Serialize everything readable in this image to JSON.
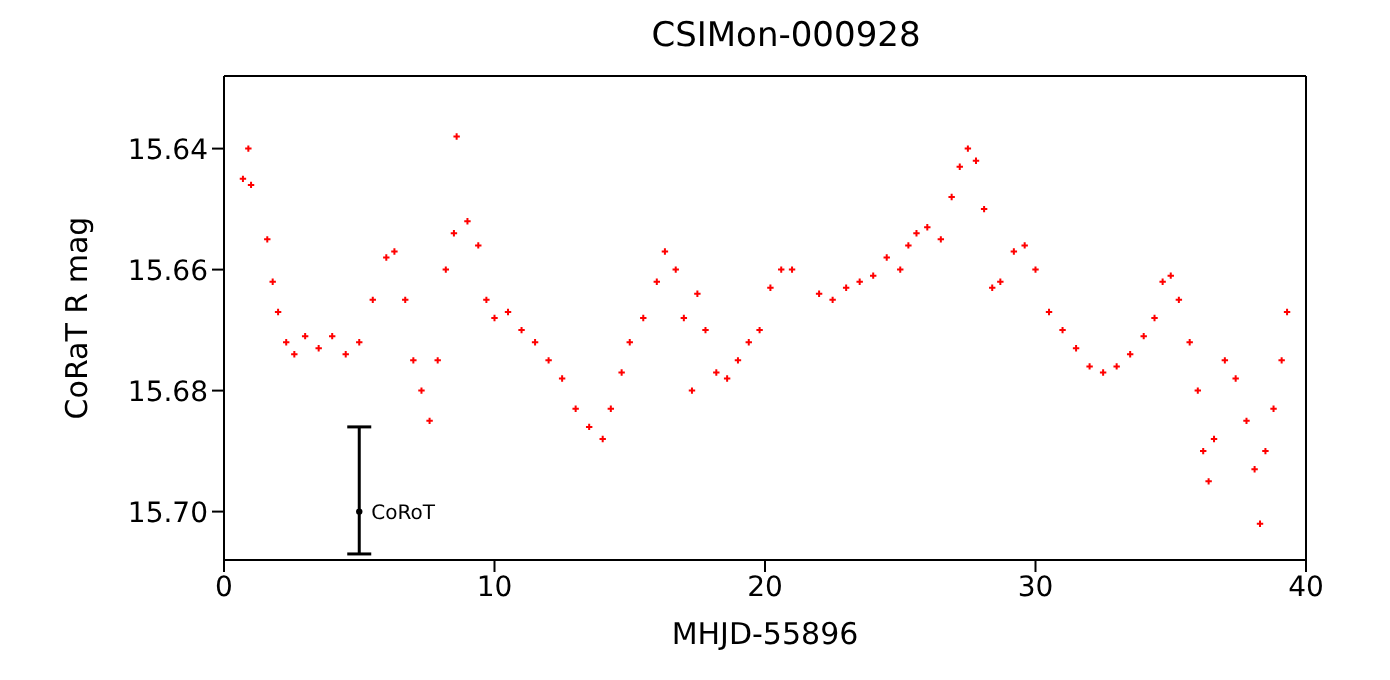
{
  "chart_data": {
    "type": "scatter",
    "title": "CSIMon-000928",
    "xlabel": "MHJD-55896",
    "ylabel": "CoRaT R mag",
    "xlim": [
      0,
      40
    ],
    "xticks": [
      0,
      10,
      20,
      30,
      40
    ],
    "ylim": [
      15.708,
      15.628
    ],
    "yticks": [
      15.64,
      15.66,
      15.68,
      {
        "value": 15.7,
        "label": "15.70"
      }
    ],
    "grid": false,
    "legend": false,
    "marker": "cross",
    "series": [
      {
        "color": "#ff0000",
        "x": [
          0.7,
          0.9,
          1.0,
          1.6,
          1.8,
          2.0,
          2.3,
          2.6,
          3.0,
          3.5,
          4.0,
          4.5,
          5.0,
          5.5,
          6.0,
          6.3,
          6.7,
          7.0,
          7.3,
          7.6,
          7.9,
          8.2,
          8.5,
          8.6,
          9.0,
          9.4,
          9.7,
          10.0,
          10.5,
          11.0,
          11.5,
          12.0,
          12.5,
          13.0,
          13.5,
          14.0,
          14.3,
          14.7,
          15.0,
          15.5,
          16.0,
          16.3,
          16.7,
          17.0,
          17.3,
          17.5,
          17.8,
          18.2,
          18.6,
          19.0,
          19.4,
          19.8,
          20.2,
          20.6,
          21.0,
          22.0,
          22.5,
          23.0,
          23.5,
          24.0,
          24.5,
          25.0,
          25.3,
          25.6,
          26.0,
          26.5,
          26.9,
          27.2,
          27.5,
          27.8,
          28.1,
          28.4,
          28.7,
          29.2,
          29.6,
          30.0,
          30.5,
          31.0,
          31.5,
          32.0,
          32.5,
          33.0,
          33.5,
          34.0,
          34.4,
          34.7,
          35.0,
          35.3,
          35.7,
          36.0,
          36.2,
          36.4,
          36.6,
          37.0,
          37.4,
          37.8,
          38.1,
          38.3,
          38.5,
          38.8,
          39.1,
          39.3
        ],
        "values": [
          15.645,
          15.64,
          15.646,
          15.655,
          15.662,
          15.667,
          15.672,
          15.674,
          15.671,
          15.673,
          15.671,
          15.674,
          15.672,
          15.665,
          15.658,
          15.657,
          15.665,
          15.675,
          15.68,
          15.685,
          15.675,
          15.66,
          15.654,
          15.638,
          15.652,
          15.656,
          15.665,
          15.668,
          15.667,
          15.67,
          15.672,
          15.675,
          15.678,
          15.683,
          15.686,
          15.688,
          15.683,
          15.677,
          15.672,
          15.668,
          15.662,
          15.657,
          15.66,
          15.668,
          15.68,
          15.664,
          15.67,
          15.677,
          15.678,
          15.675,
          15.672,
          15.67,
          15.663,
          15.66,
          15.66,
          15.664,
          15.665,
          15.663,
          15.662,
          15.661,
          15.658,
          15.66,
          15.656,
          15.654,
          15.653,
          15.655,
          15.648,
          15.643,
          15.64,
          15.642,
          15.65,
          15.663,
          15.662,
          15.657,
          15.656,
          15.66,
          15.667,
          15.67,
          15.673,
          15.676,
          15.677,
          15.676,
          15.674,
          15.671,
          15.668,
          15.662,
          15.661,
          15.665,
          15.672,
          15.68,
          15.69,
          15.695,
          15.688,
          15.675,
          15.678,
          15.685,
          15.693,
          15.702,
          15.69,
          15.683,
          15.675,
          15.667
        ]
      },
      {
        "color": "#000000",
        "marker": "circle",
        "x": [
          5
        ],
        "values": [
          15.7
        ],
        "errors": [
          [
            15.686,
            15.707
          ]
        ]
      }
    ],
    "annotations": [
      {
        "text": "CoRoT",
        "x": 5,
        "y": 15.7
      }
    ]
  }
}
